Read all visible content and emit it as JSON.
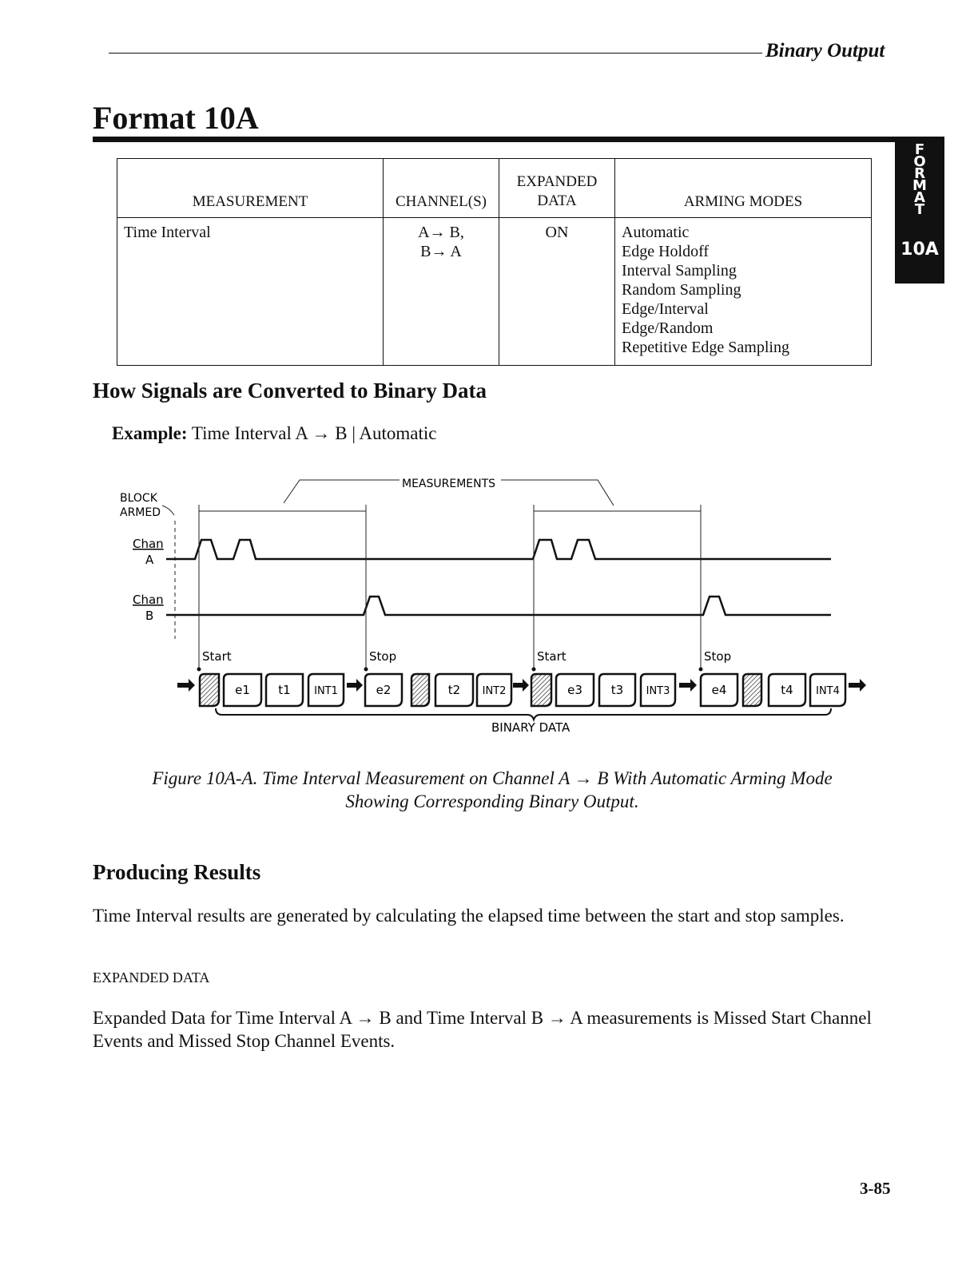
{
  "header": {
    "section": "Binary Output"
  },
  "title": "Format 10A",
  "side_tab": {
    "letters": [
      "F",
      "O",
      "R",
      "M",
      "A",
      "T"
    ],
    "number": "10A"
  },
  "table": {
    "headers": [
      "MEASUREMENT",
      "CHANNEL(S)",
      "EXPANDED\nDATA",
      "ARMING MODES"
    ],
    "rows": [
      {
        "measurement": "Time Interval",
        "channels": [
          "A→ B,",
          "B→ A"
        ],
        "expanded_data": "ON",
        "arming_modes": [
          "Automatic",
          "Edge Holdoff",
          "Interval Sampling",
          "Random Sampling",
          "Edge/Interval",
          "Edge/Random",
          "Repetitive Edge Sampling"
        ]
      }
    ]
  },
  "section1": {
    "heading": "How Signals are Converted to Binary Data",
    "example_label": "Example:",
    "example_text": "Time Interval A → B | Automatic"
  },
  "diagram": {
    "measurements_label": "MEASUREMENTS",
    "block_armed": [
      "BLOCK",
      "ARMED"
    ],
    "chan_a": [
      "Chan",
      "A"
    ],
    "chan_b": [
      "Chan",
      "B"
    ],
    "markers": [
      "Start",
      "Stop",
      "Start",
      "Stop"
    ],
    "boxes": [
      "",
      "e1",
      "t1",
      "INT1",
      "e2",
      "",
      "t2",
      "INT2",
      "",
      "e3",
      "t3",
      "INT3",
      "e4",
      "",
      "t4",
      "INT4"
    ],
    "binary_data_label": "BINARY DATA"
  },
  "figure_caption": {
    "line1": "Figure 10A-A. Time Interval Measurement on Channel A → B With Automatic Arming Mode",
    "line2": "Showing Corresponding Binary Output."
  },
  "section2": {
    "heading": "Producing Results",
    "paragraph": "Time Interval results are generated by calculating the elapsed time between the start and stop samples.",
    "subheading": "EXPANDED DATA",
    "paragraph2": "Expanded Data for Time Interval A → B and Time Interval B → A measurements is Missed Start Channel Events and Missed Stop Channel Events."
  },
  "page_number": "3-85"
}
